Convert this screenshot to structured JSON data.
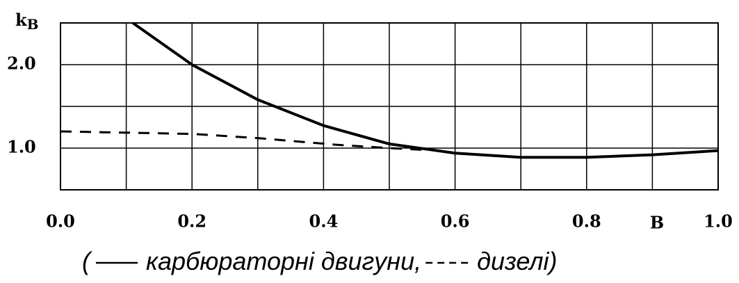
{
  "chart_data": {
    "type": "line",
    "y_label": "k",
    "y_label_sub": "В",
    "x_label": "В",
    "xlim": [
      0,
      1
    ],
    "ylim": [
      0.5,
      2.5
    ],
    "xticks": [
      {
        "value": 0,
        "label": "0.0"
      },
      {
        "value": 0.2,
        "label": "0.2"
      },
      {
        "value": 0.4,
        "label": "0.4"
      },
      {
        "value": 0.6,
        "label": "0.6"
      },
      {
        "value": 0.8,
        "label": "0.8"
      },
      {
        "value": 1,
        "label": "1.0"
      }
    ],
    "x_minor_ticks": [
      0.1,
      0.3,
      0.5,
      0.7,
      0.9
    ],
    "yticks": [
      {
        "value": 1,
        "label": "1.0"
      },
      {
        "value": 2,
        "label": "2.0"
      }
    ],
    "y_minor_ticks": [
      0.5,
      1.5,
      2.5
    ],
    "grid": true,
    "legend_open": "(",
    "legend_separator": ",",
    "legend_close": ")",
    "series": [
      {
        "name": "карбюраторні двигуни",
        "color": "#000000",
        "dash": false,
        "x": [
          0.11,
          0.2,
          0.3,
          0.4,
          0.5,
          0.6,
          0.7,
          0.8,
          0.9,
          1.0
        ],
        "values": [
          2.5,
          2.0,
          1.58,
          1.27,
          1.05,
          0.94,
          0.89,
          0.89,
          0.92,
          0.97
        ]
      },
      {
        "name": "дизелі",
        "color": "#000000",
        "dash": true,
        "x": [
          0.0,
          0.2,
          0.3,
          0.42,
          0.5,
          0.55
        ],
        "values": [
          1.2,
          1.17,
          1.12,
          1.04,
          1.0,
          0.98
        ]
      }
    ]
  }
}
